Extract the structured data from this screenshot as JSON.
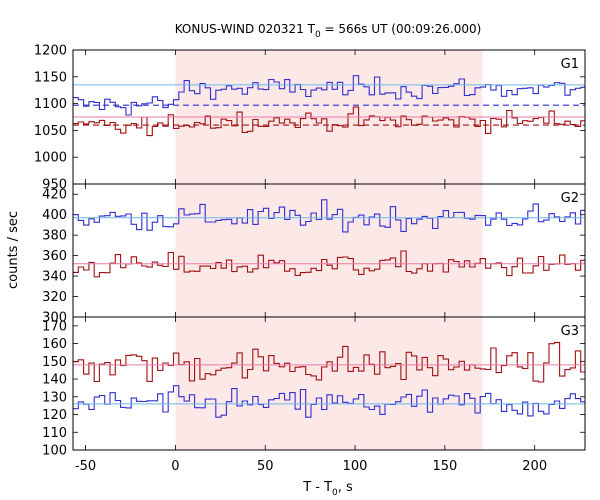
{
  "chart_data": {
    "type": "line",
    "title_main": "KONUS-WIND 020321 T",
    "title_sub": "0",
    "title_rest": " = 566s UT (00:09:26.000)",
    "xlabel_main": "T - T",
    "xlabel_sub": "0",
    "xlabel_rest": ", s",
    "ylabel": "counts / sec",
    "xlim": [
      -57,
      228
    ],
    "xticks": [
      "-50",
      "0",
      "50",
      "100",
      "150",
      "200"
    ],
    "xtick_values": [
      -50,
      0,
      50,
      100,
      150,
      200
    ],
    "shaded_interval": [
      0,
      171
    ],
    "colors": {
      "blue_series": "#2f2fd0",
      "red_series": "#a01010",
      "blue_level": "#6ab8e8",
      "red_level": "#e87aa8",
      "shade": "#fde8e8"
    },
    "panels": [
      {
        "name": "G1",
        "ylim": [
          950,
          1200
        ],
        "yticks": [
          "950",
          "1000",
          "1050",
          "1100",
          "1150",
          "1200"
        ],
        "ytick_values": [
          950,
          1000,
          1050,
          1100,
          1150,
          1200
        ],
        "background_blue": 1097,
        "background_red": 1060,
        "source_level_blue": 1135,
        "source_level_red": 1075,
        "blue_mean": 1128,
        "blue_noise": 14,
        "red_mean": 1068,
        "red_noise": 13
      },
      {
        "name": "G2",
        "ylim": [
          300,
          430
        ],
        "yticks": [
          "300",
          "320",
          "340",
          "360",
          "380",
          "400",
          "420"
        ],
        "ytick_values": [
          300,
          320,
          340,
          360,
          380,
          400,
          420
        ],
        "level_blue": 397,
        "level_red": 352,
        "blue_mean": 397,
        "blue_noise": 9,
        "red_mean": 350,
        "red_noise": 8
      },
      {
        "name": "G3",
        "ylim": [
          100,
          175
        ],
        "yticks": [
          "100",
          "110",
          "120",
          "130",
          "140",
          "150",
          "160",
          "170"
        ],
        "ytick_values": [
          100,
          110,
          120,
          130,
          140,
          150,
          160,
          170
        ],
        "level_blue": 126,
        "level_red": 148,
        "blue_mean": 126,
        "blue_noise": 6,
        "red_mean": 148,
        "red_noise": 7
      }
    ]
  }
}
